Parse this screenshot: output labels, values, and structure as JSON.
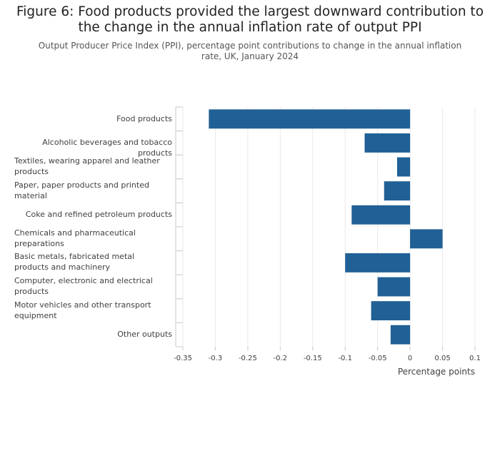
{
  "title": "Figure 6: Food products provided the largest downward contribution to the change in the annual inflation rate of output PPI",
  "subtitle": "Output Producer Price Index (PPI), percentage point contributions to change in the annual inflation rate, UK, January 2024",
  "colors": {
    "bar": "#206095",
    "grid": "#e8e8e8",
    "axis": "#c8c8c8"
  },
  "chart_data": {
    "type": "bar",
    "orientation": "horizontal",
    "categories": [
      "Food products",
      "Alcoholic beverages and tobacco products",
      "Textiles, wearing apparel and leather products",
      "Paper, paper products and printed material",
      "Coke and refined petroleum products",
      "Chemicals and pharmaceutical preparations",
      "Basic metals, fabricated metal products and machinery",
      "Computer, electronic and electrical products",
      "Motor vehicles and other transport equipment",
      "Other outputs"
    ],
    "values": [
      -0.31,
      -0.07,
      -0.02,
      -0.04,
      -0.09,
      0.05,
      -0.1,
      -0.05,
      -0.06,
      -0.03
    ],
    "xlim": [
      -0.35,
      0.1
    ],
    "xticks": [
      -0.35,
      -0.3,
      -0.25,
      -0.2,
      -0.15,
      -0.1,
      -0.05,
      0,
      0.05,
      0.1
    ],
    "xtick_labels": [
      "-0.35",
      "-0.3",
      "-0.25",
      "-0.2",
      "-0.15",
      "-0.1",
      "-0.05",
      "0",
      "0.05",
      "0.1"
    ],
    "xlabel": "Percentage points",
    "ylabel": "",
    "legend": "none",
    "grid": true
  }
}
